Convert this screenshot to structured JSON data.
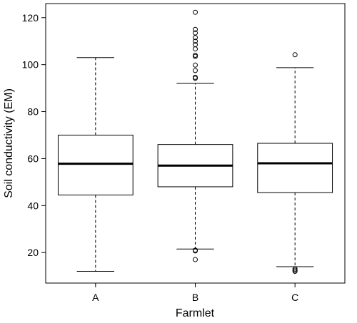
{
  "chart_data": {
    "type": "boxplot",
    "title": "",
    "xlabel": "Farmlet",
    "ylabel": "Soil conductivity (EM)",
    "ylim": [
      7,
      126
    ],
    "yticks": [
      20,
      40,
      60,
      80,
      100,
      120
    ],
    "grid": false,
    "legend": "none",
    "categories": [
      "A",
      "B",
      "C"
    ],
    "series": [
      {
        "category": "A",
        "whisker_low": 12,
        "q1": 44.5,
        "median": 57.8,
        "q3": 70,
        "whisker_high": 103,
        "outliers": []
      },
      {
        "category": "B",
        "whisker_low": 21.5,
        "q1": 48,
        "median": 57,
        "q3": 66,
        "whisker_high": 92,
        "outliers": [
          17,
          20.7,
          21,
          94.2,
          94.6,
          97.5,
          99.8,
          103.5,
          104,
          106.7,
          108.5,
          110,
          111.5,
          113.5,
          115,
          122.3
        ]
      },
      {
        "category": "C",
        "whisker_low": 14,
        "q1": 45.5,
        "median": 58,
        "q3": 66.5,
        "whisker_high": 98.7,
        "outliers": [
          12,
          12.5,
          13,
          104.2
        ]
      }
    ],
    "colors": {
      "box_fill": "#ffffff",
      "stroke": "#000000"
    }
  }
}
